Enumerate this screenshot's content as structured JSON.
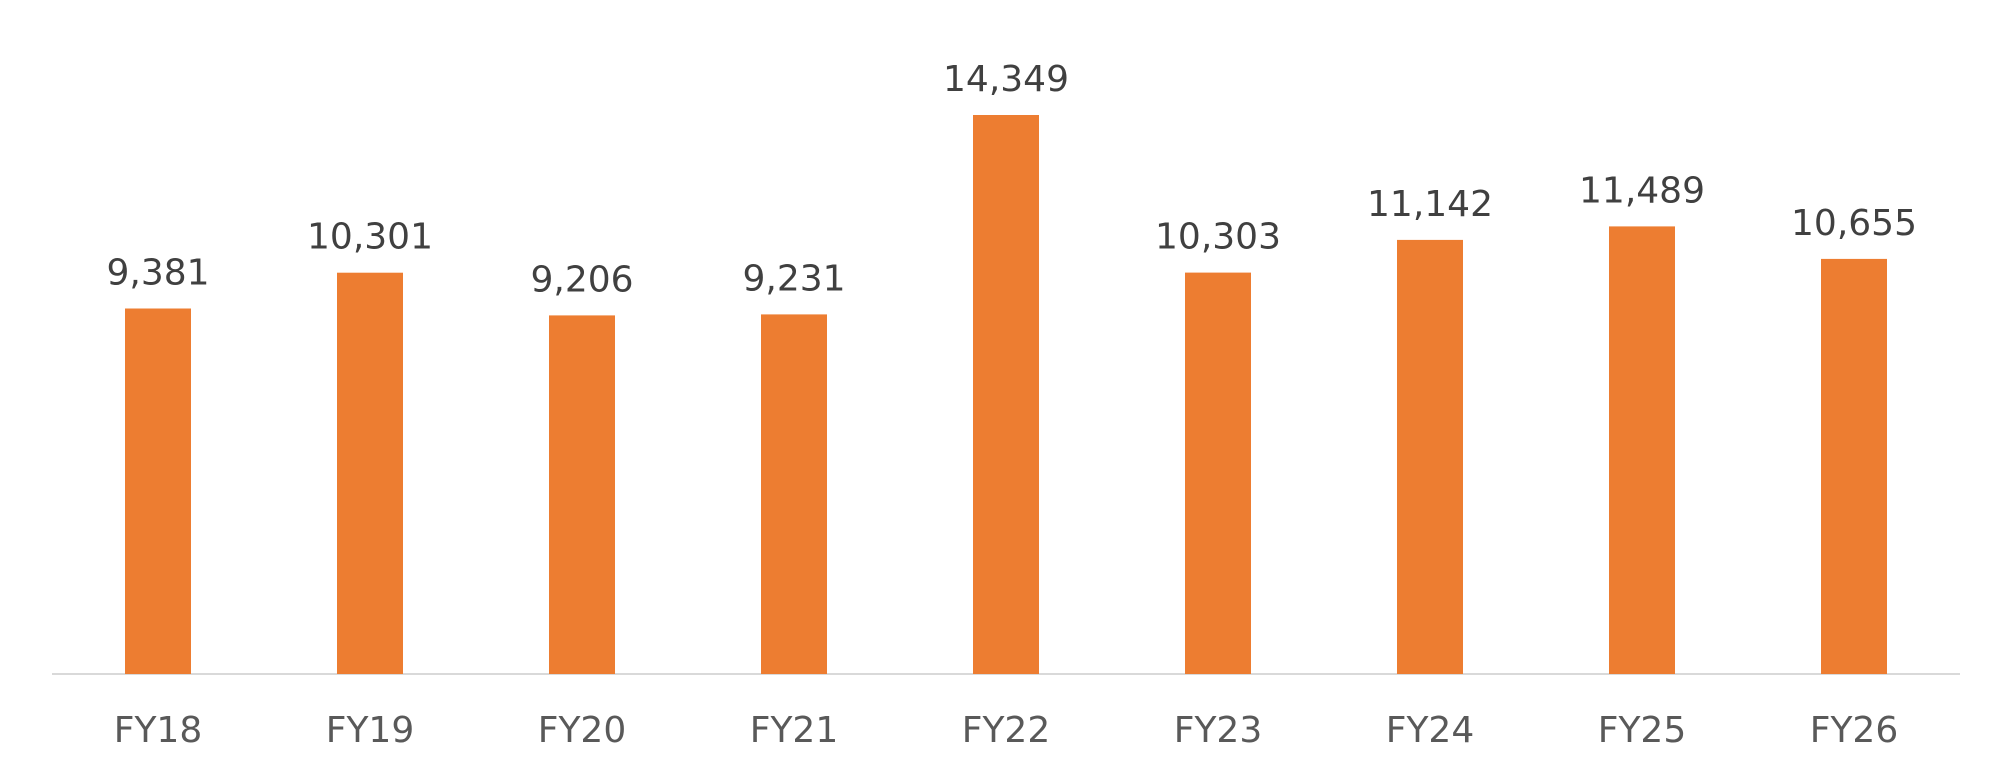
{
  "chart_data": {
    "type": "bar",
    "categories": [
      "FY18",
      "FY19",
      "FY20",
      "FY21",
      "FY22",
      "FY23",
      "FY24",
      "FY25",
      "FY26"
    ],
    "values": [
      9381,
      10301,
      9206,
      9231,
      14349,
      10303,
      11142,
      11489,
      10655
    ],
    "data_labels": [
      "9,381",
      "10,301",
      "9,206",
      "9,231",
      "14,349",
      "10,303",
      "11,142",
      "11,489",
      "10,655"
    ],
    "title": "",
    "xlabel": "",
    "ylabel": "",
    "ylim": [
      0,
      14349
    ],
    "grid": false,
    "legend": "none",
    "colors": {
      "bar": "#ED7D31",
      "axis": "#D9D9D9",
      "data_label": "#404040",
      "tick_label": "#595959"
    }
  }
}
